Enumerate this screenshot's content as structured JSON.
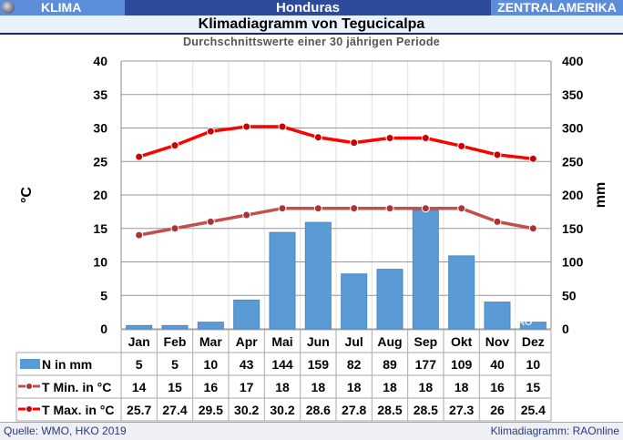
{
  "header": {
    "left": "KLIMA",
    "center": "Honduras",
    "right": "ZENTRALAMERIKA"
  },
  "title": "Klimadiagramm von Tegucicalpa",
  "subtitle": "Durchschnittswerte einer 30 jährigen Periode",
  "footer": {
    "source": "Quelle:  WMO, HKO 2019",
    "credit": "Klimadiagramm:  RAOnline"
  },
  "watermark": "RAO",
  "chart_data": {
    "type": "bar+line",
    "categories": [
      "Jan",
      "Feb",
      "Mar",
      "Apr",
      "Mai",
      "Jun",
      "Jul",
      "Aug",
      "Sep",
      "Okt",
      "Nov",
      "Dez"
    ],
    "ylabel_left": "°C",
    "ylabel_right": "mm",
    "ylim_left": [
      0,
      40
    ],
    "ylim_right": [
      0,
      400
    ],
    "yticks_left": [
      0,
      5,
      10,
      15,
      20,
      25,
      30,
      35,
      40
    ],
    "yticks_right": [
      0,
      50,
      100,
      150,
      200,
      250,
      300,
      350,
      400
    ],
    "grid": true,
    "series": [
      {
        "name": "N in mm",
        "type": "bar",
        "axis": "right",
        "color": "#5b9bd5",
        "values": [
          5,
          5,
          10,
          43,
          144,
          159,
          82,
          89,
          177,
          109,
          40,
          10
        ],
        "labels": [
          "5",
          "5",
          "10",
          "43",
          "144",
          "159",
          "82",
          "89",
          "177",
          "109",
          "40",
          "10"
        ]
      },
      {
        "name": "T Min. in °C",
        "type": "line",
        "axis": "left",
        "color": "#c0504d",
        "values": [
          14,
          15,
          16,
          17,
          18,
          18,
          18,
          18,
          18,
          18,
          16,
          15
        ],
        "labels": [
          "14",
          "15",
          "16",
          "17",
          "18",
          "18",
          "18",
          "18",
          "18",
          "18",
          "16",
          "15"
        ]
      },
      {
        "name": "T Max. in °C",
        "type": "line",
        "axis": "left",
        "color": "#ff0000",
        "values": [
          25.7,
          27.4,
          29.5,
          30.2,
          30.2,
          28.6,
          27.8,
          28.5,
          28.5,
          27.3,
          26,
          25.4
        ],
        "labels": [
          "25.7",
          "27.4",
          "29.5",
          "30.2",
          "30.2",
          "28.6",
          "27.8",
          "28.5",
          "28.5",
          "27.3",
          "26",
          "25.4"
        ]
      }
    ]
  }
}
